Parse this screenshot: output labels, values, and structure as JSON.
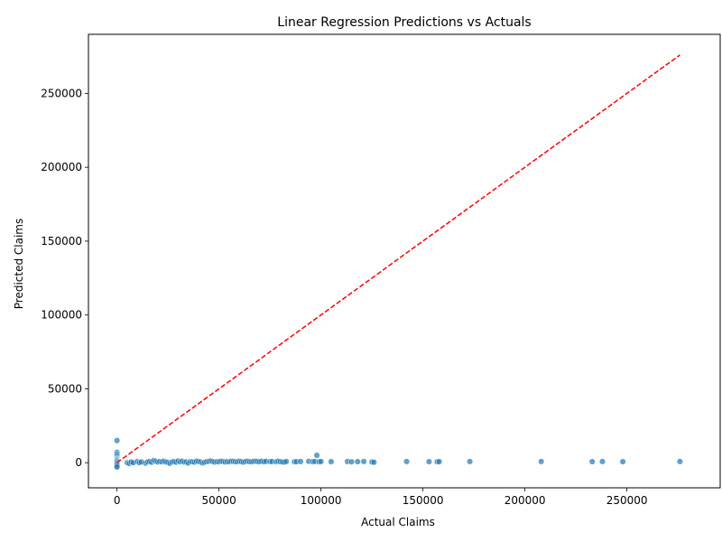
{
  "chart_data": {
    "type": "scatter",
    "title": "Linear Regression Predictions vs Actuals",
    "xlabel": "Actual Claims",
    "ylabel": "Predicted Claims",
    "xlim": [
      -14000,
      290000
    ],
    "ylim": [
      -17000,
      290000
    ],
    "xticks": [
      0,
      50000,
      100000,
      150000,
      200000,
      250000
    ],
    "yticks": [
      0,
      50000,
      100000,
      150000,
      200000,
      250000
    ],
    "grid": false,
    "colors": {
      "points": "#1f77b4",
      "reference_line": "#ff0000"
    },
    "reference_line": {
      "from": [
        0,
        0
      ],
      "to": [
        276000,
        276000
      ],
      "style": "dashed"
    },
    "points": {
      "x": [
        0,
        0,
        0,
        0,
        0,
        0,
        0,
        0,
        0,
        0,
        0,
        0,
        0,
        0,
        0,
        5000,
        6000,
        7000,
        8000,
        10000,
        11000,
        12000,
        14000,
        15000,
        16000,
        17000,
        18000,
        19000,
        20000,
        21000,
        22000,
        23000,
        24000,
        25000,
        26000,
        27000,
        28000,
        29000,
        30000,
        31000,
        32000,
        33000,
        34000,
        35000,
        36000,
        37000,
        38000,
        39000,
        40000,
        41000,
        42000,
        43000,
        44000,
        45000,
        46000,
        47000,
        48000,
        49000,
        50000,
        51000,
        52000,
        53000,
        54000,
        55000,
        56000,
        57000,
        58000,
        59000,
        60000,
        61000,
        62000,
        63000,
        64000,
        65000,
        66000,
        67000,
        68000,
        69000,
        70000,
        71000,
        72000,
        73000,
        75000,
        76000,
        78000,
        79000,
        80000,
        81000,
        82000,
        83000,
        87000,
        88000,
        90000,
        94000,
        96000,
        97000,
        98000,
        99000,
        100000,
        105000,
        113000,
        115000,
        118000,
        121000,
        125000,
        126000,
        142000,
        153000,
        157000,
        158000,
        173000,
        208000,
        233000,
        238000,
        248000,
        276000
      ],
      "y": [
        15000,
        7000,
        6000,
        5000,
        4000,
        3000,
        2500,
        2000,
        1500,
        1000,
        500,
        -500,
        -1000,
        -2000,
        -3000,
        0,
        -500,
        500,
        0,
        800,
        0,
        500,
        -300,
        600,
        800,
        300,
        1500,
        1000,
        500,
        800,
        600,
        1000,
        500,
        200,
        -400,
        500,
        800,
        300,
        1200,
        600,
        1000,
        400,
        500,
        -300,
        700,
        600,
        400,
        1000,
        800,
        500,
        -200,
        300,
        700,
        900,
        1200,
        800,
        400,
        700,
        600,
        1000,
        800,
        500,
        700,
        600,
        1000,
        900,
        700,
        600,
        1000,
        700,
        400,
        800,
        1000,
        700,
        600,
        900,
        1000,
        800,
        700,
        1000,
        600,
        900,
        700,
        800,
        600,
        1000,
        700,
        500,
        400,
        800,
        600,
        700,
        800,
        900,
        700,
        800,
        5000,
        600,
        800,
        700,
        800,
        600,
        700,
        800,
        500,
        300,
        800,
        700,
        600,
        700,
        800,
        800,
        700,
        800,
        700,
        800
      ]
    }
  }
}
